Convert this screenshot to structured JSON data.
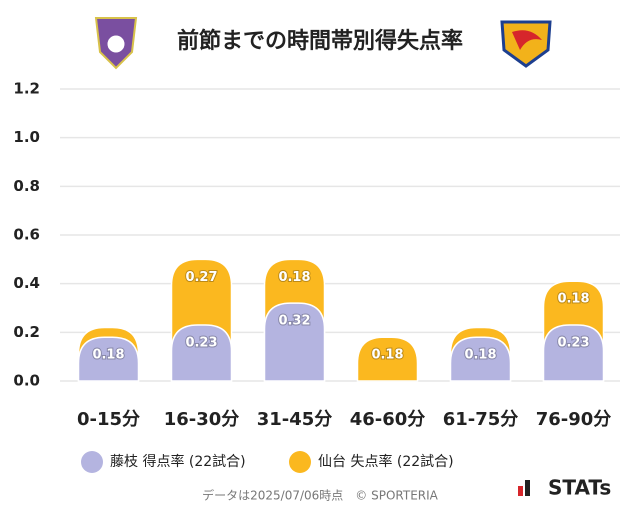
{
  "chart_data": {
    "type": "bar",
    "stacked": true,
    "title": "前節までの時間帯別得失点率",
    "categories": [
      "0-15分",
      "16-30分",
      "31-45分",
      "46-60分",
      "61-75分",
      "76-90分"
    ],
    "series": [
      {
        "name": "藤枝 得点率 (22試合)",
        "color": "#b4b4e0",
        "values": [
          0.18,
          0.23,
          0.32,
          0,
          0.18,
          0.23
        ]
      },
      {
        "name": "仙台 失点率 (22試合)",
        "color": "#fbb81f",
        "values": [
          0.04,
          0.27,
          0.18,
          0.18,
          0.04,
          0.18
        ]
      }
    ],
    "ylim": [
      0,
      1.2
    ],
    "yticks": [
      {
        "value": 0,
        "label": "0.0"
      },
      0.2,
      0.4,
      0.6,
      0.8,
      {
        "value": 1,
        "label": "1.0"
      },
      1.2
    ],
    "grid": true,
    "footnote": "データは2025/07/06時点　© SPORTERIA",
    "brand": "STATs"
  }
}
